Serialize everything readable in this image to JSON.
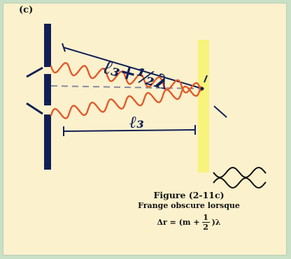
{
  "panel_label": "(c)",
  "labels": {
    "upper_length": "ℓ₃+½λ",
    "lower_length": "ℓ₃"
  },
  "caption": {
    "title": "Figure (2-11c)",
    "subtitle": "Frange obscure lorsque",
    "equation_lhs": "Δr = (m +",
    "frac_num": "1",
    "frac_den": "2",
    "equation_rhs": ")λ"
  },
  "colors": {
    "background": "#c9dfc6",
    "panel": "#fbf1cd",
    "barrier": "#121f55",
    "screen": "#f8f37a",
    "wave": "#e25a2c",
    "ink": "#111111"
  }
}
